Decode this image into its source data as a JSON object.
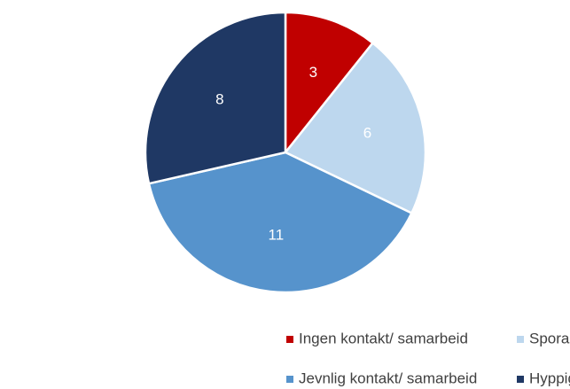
{
  "chart_data": {
    "type": "pie",
    "categories": [
      "Ingen kontakt/ samarbeid",
      "Sporadisk kontakt/ samarbeid",
      "Jevnlig kontakt/ samarbeid",
      "Hyppig kontakt / samarbeid"
    ],
    "values": [
      3,
      6,
      11,
      8
    ],
    "colors": [
      "#c00000",
      "#bdd7ee",
      "#5693cc",
      "#1f3864"
    ],
    "legend": "bottom"
  }
}
